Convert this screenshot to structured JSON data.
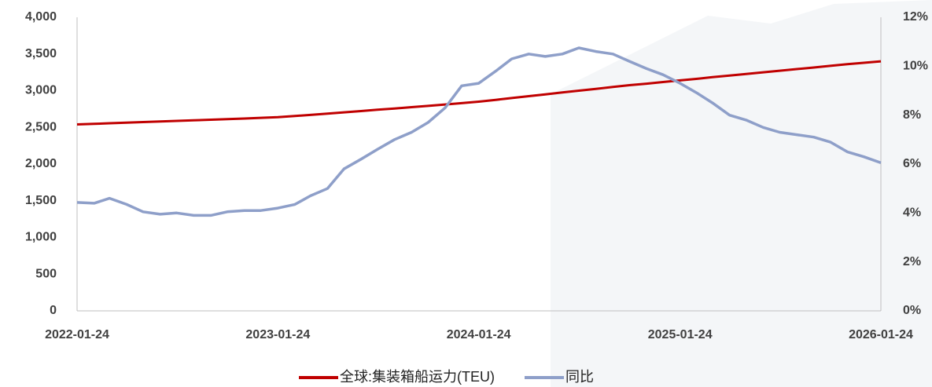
{
  "chart_data": {
    "type": "line",
    "x": [
      "2022-01-24",
      "2022-02-24",
      "2022-03-24",
      "2022-04-24",
      "2022-05-24",
      "2022-06-24",
      "2022-07-24",
      "2022-08-24",
      "2022-09-24",
      "2022-10-24",
      "2022-11-24",
      "2022-12-24",
      "2023-01-24",
      "2023-02-24",
      "2023-03-24",
      "2023-04-24",
      "2023-05-24",
      "2023-06-24",
      "2023-07-24",
      "2023-08-24",
      "2023-09-24",
      "2023-10-24",
      "2023-11-24",
      "2023-12-24",
      "2024-01-24",
      "2024-02-24",
      "2024-03-24",
      "2024-04-24",
      "2024-05-24",
      "2024-06-24",
      "2024-07-24",
      "2024-08-24",
      "2024-09-24",
      "2024-10-24",
      "2024-11-24",
      "2024-12-24",
      "2025-01-24",
      "2025-02-24",
      "2025-03-24",
      "2025-04-24",
      "2025-05-24",
      "2025-06-24",
      "2025-07-24",
      "2025-08-24",
      "2025-09-24",
      "2025-10-24",
      "2025-11-24",
      "2025-12-24",
      "2026-01-24"
    ],
    "xlim": [
      "2022-01-24",
      "2026-01-24"
    ],
    "xticks": [
      "2022-01-24",
      "2023-01-24",
      "2024-01-24",
      "2025-01-24",
      "2026-01-24"
    ],
    "series": [
      {
        "name": "全球:集装箱船运力(TEU)",
        "color": "#c00000",
        "values": [
          2540,
          2548,
          2556,
          2564,
          2572,
          2580,
          2588,
          2596,
          2604,
          2612,
          2620,
          2630,
          2640,
          2655,
          2670,
          2688,
          2705,
          2722,
          2740,
          2757,
          2775,
          2793,
          2812,
          2830,
          2850,
          2875,
          2900,
          2925,
          2950,
          2975,
          3000,
          3025,
          3050,
          3075,
          3095,
          3118,
          3140,
          3162,
          3184,
          3206,
          3228,
          3250,
          3272,
          3294,
          3316,
          3338,
          3360,
          3380,
          3400
        ]
      },
      {
        "name": "同比",
        "color": "#8e9fc9",
        "axis": "y2",
        "values": [
          4.43,
          4.4,
          4.6,
          4.35,
          4.05,
          3.95,
          4.0,
          3.9,
          3.9,
          4.05,
          4.1,
          4.1,
          4.2,
          4.35,
          4.7,
          5.0,
          5.8,
          6.2,
          6.6,
          7.0,
          7.3,
          7.7,
          8.3,
          9.2,
          9.3,
          9.8,
          10.3,
          10.5,
          10.4,
          10.5,
          10.75,
          10.6,
          10.5,
          10.2,
          9.9,
          9.65,
          9.3,
          8.9,
          8.5,
          8.0,
          7.8,
          7.5,
          7.3,
          7.2,
          7.1,
          6.9,
          6.5,
          6.3,
          6.05
        ]
      }
    ],
    "ylim": [
      0,
      4000
    ],
    "yticks": [
      0,
      500,
      {
        "value": 1000,
        "label": "1,000"
      },
      {
        "value": 1500,
        "label": "1,500"
      },
      {
        "value": 2000,
        "label": "2,000"
      },
      {
        "value": 2500,
        "label": "2,500"
      },
      {
        "value": 3000,
        "label": "3,000"
      },
      {
        "value": 3500,
        "label": "3,500"
      },
      {
        "value": 4000,
        "label": "4,000"
      }
    ],
    "y2lim": [
      0,
      12
    ],
    "y2ticks": [
      {
        "value": 0,
        "label": "0%"
      },
      {
        "value": 2,
        "label": "2%"
      },
      {
        "value": 4,
        "label": "4%"
      },
      {
        "value": 6,
        "label": "6%"
      },
      {
        "value": 8,
        "label": "8%"
      },
      {
        "value": 10,
        "label": "10%"
      },
      {
        "value": 12,
        "label": "12%"
      }
    ],
    "grid": false,
    "legend": "bottom"
  }
}
